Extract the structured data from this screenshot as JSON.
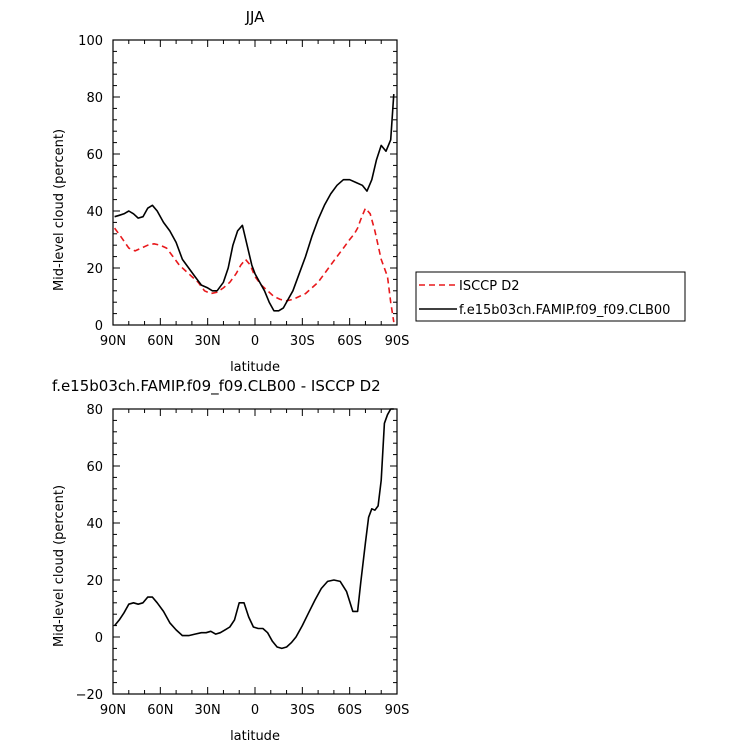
{
  "chart_data": [
    {
      "type": "line",
      "title": "JJA",
      "xlabel": "latitude",
      "ylabel": "Mid-level cloud (percent)",
      "xlim": [
        90,
        -90
      ],
      "ylim": [
        0,
        100
      ],
      "xticks": [
        90,
        60,
        30,
        0,
        -30,
        -60,
        -90
      ],
      "xtick_labels": [
        "90N",
        "60N",
        "30N",
        "0",
        "30S",
        "60S",
        "90S"
      ],
      "yticks": [
        0,
        20,
        40,
        60,
        80,
        100
      ],
      "ytick_labels": [
        "0",
        "20",
        "40",
        "60",
        "80",
        "100"
      ],
      "grid": false,
      "legend_position": "right",
      "series": [
        {
          "name": "ISCCP D2",
          "color": "#e8191c",
          "dash": "dashed",
          "x": [
            89,
            85,
            80,
            76,
            72,
            68,
            64,
            60,
            56,
            52,
            48,
            44,
            40,
            36,
            32,
            28,
            24,
            20,
            16,
            12,
            9,
            6,
            3,
            0,
            -4,
            -8,
            -12,
            -16,
            -20,
            -24,
            -28,
            -32,
            -36,
            -40,
            -44,
            -48,
            -52,
            -56,
            -60,
            -63,
            -65,
            -67,
            -70,
            -73,
            -76,
            -80,
            -84,
            -86,
            -88
          ],
          "y": [
            34,
            31,
            27,
            26,
            27,
            28,
            28.5,
            28,
            27,
            24,
            21,
            19,
            17,
            15,
            12,
            11,
            11.5,
            13,
            15,
            18,
            21,
            23,
            21,
            17,
            14,
            12,
            10,
            9,
            8.5,
            9,
            10,
            11,
            13,
            15,
            18,
            21,
            24,
            27,
            30,
            32,
            34,
            37,
            41,
            39,
            33,
            23,
            17,
            8,
            1
          ]
        },
        {
          "name": "f.e15b03ch.FAMIP.f09_f09.CLB00",
          "color": "#000000",
          "dash": "solid",
          "x": [
            89,
            86,
            83,
            80,
            77,
            74,
            71,
            68,
            65,
            62,
            58,
            54,
            50,
            46,
            42,
            38,
            34,
            30,
            27,
            24,
            20,
            17,
            14,
            11,
            8,
            5,
            2,
            0,
            -3,
            -6,
            -9,
            -12,
            -15,
            -18,
            -21,
            -24,
            -28,
            -32,
            -36,
            -40,
            -44,
            -48,
            -52,
            -56,
            -60,
            -64,
            -68,
            -71,
            -74,
            -77,
            -80,
            -83,
            -86,
            -88
          ],
          "y": [
            38,
            38.5,
            39,
            40,
            39,
            37.5,
            38,
            41,
            42,
            40,
            36,
            33,
            29,
            23,
            20,
            17,
            14,
            13,
            12,
            12,
            15,
            20,
            28,
            33,
            35,
            28,
            21,
            18,
            15,
            12,
            8,
            5,
            5,
            6,
            9,
            12,
            18,
            24,
            31,
            37,
            42,
            46,
            49,
            51,
            51,
            50,
            49,
            47,
            51,
            58,
            63,
            61,
            65,
            81
          ]
        }
      ]
    },
    {
      "type": "line",
      "title": "f.e15b03ch.FAMIP.f09_f09.CLB00 - ISCCP D2",
      "xlabel": "latitude",
      "ylabel": "Mid-level cloud (percent)",
      "xlim": [
        90,
        -90
      ],
      "ylim": [
        -20,
        80
      ],
      "xticks": [
        90,
        60,
        30,
        0,
        -30,
        -60,
        -90
      ],
      "xtick_labels": [
        "90N",
        "60N",
        "30N",
        "0",
        "30S",
        "60S",
        "90S"
      ],
      "yticks": [
        -20,
        0,
        20,
        40,
        60,
        80
      ],
      "ytick_labels": [
        "−20",
        "0",
        "20",
        "40",
        "60",
        "80"
      ],
      "grid": false,
      "series": [
        {
          "color": "#000000",
          "dash": "solid",
          "x": [
            89,
            86,
            83,
            80,
            77,
            74,
            71,
            68,
            65,
            62,
            58,
            54,
            50,
            46,
            42,
            38,
            34,
            31,
            28,
            25,
            22,
            19,
            16,
            13,
            10,
            7,
            4,
            1,
            -2,
            -5,
            -8,
            -11,
            -14,
            -17,
            -20,
            -23,
            -26,
            -30,
            -34,
            -38,
            -42,
            -46,
            -50,
            -54,
            -58,
            -62,
            -65,
            -67,
            -70,
            -72,
            -74,
            -76,
            -78,
            -80,
            -82,
            -84,
            -86,
            -88
          ],
          "y": [
            4,
            6,
            8.5,
            11.5,
            12,
            11.5,
            12,
            14,
            14,
            12,
            9,
            5,
            2.5,
            0.5,
            0.5,
            1,
            1.5,
            1.5,
            2,
            1,
            1.5,
            2.5,
            3.5,
            6,
            12,
            12,
            7,
            3.5,
            3,
            3,
            1.5,
            -1.5,
            -3.5,
            -4,
            -3.5,
            -2,
            0,
            4,
            8.5,
            13,
            17,
            19.5,
            20,
            19.5,
            16,
            9,
            9,
            19,
            33,
            42,
            45,
            44.5,
            46,
            55,
            75,
            78,
            80,
            80
          ]
        }
      ]
    }
  ]
}
